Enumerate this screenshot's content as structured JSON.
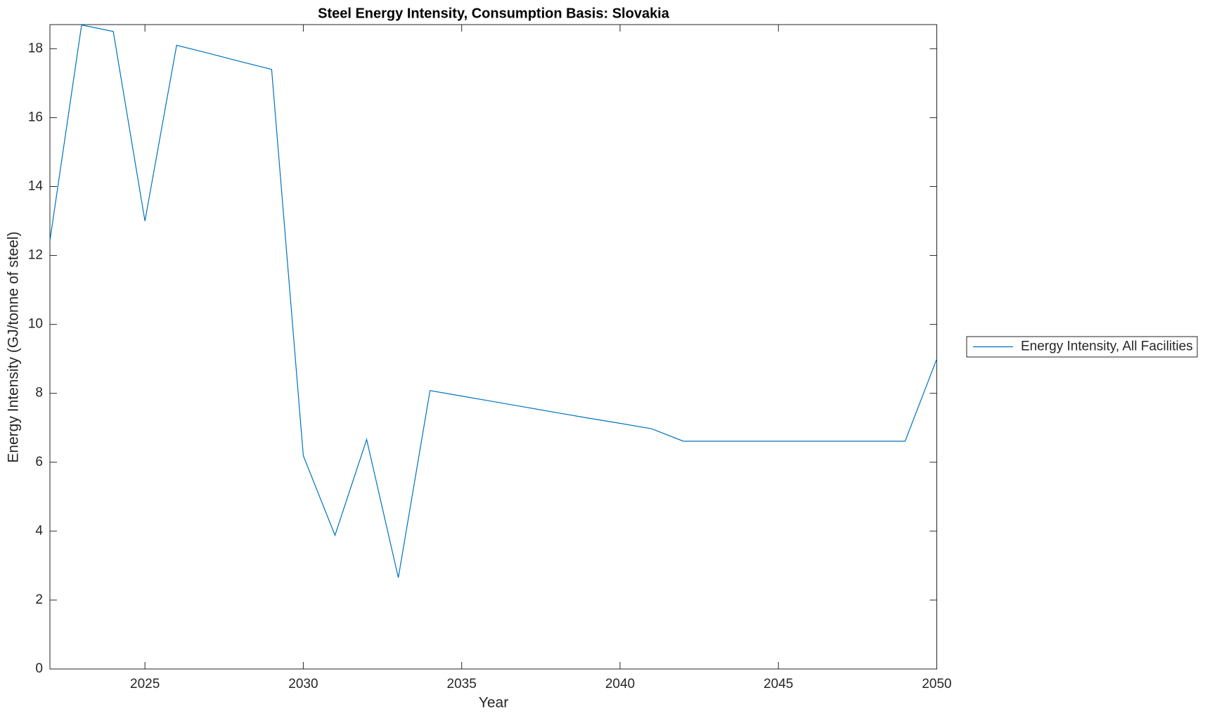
{
  "chart_data": {
    "type": "line",
    "title": "Steel Energy Intensity, Consumption Basis: Slovakia",
    "x_label": "Year",
    "y_label": "Energy Intensity (GJ/tonne of steel)",
    "x": [
      2022,
      2023,
      2024,
      2025,
      2026,
      2027,
      2028,
      2029,
      2030,
      2031,
      2032,
      2033,
      2034,
      2035,
      2036,
      2037,
      2038,
      2039,
      2040,
      2041,
      2042,
      2043,
      2044,
      2045,
      2046,
      2047,
      2048,
      2049,
      2050
    ],
    "series": [
      {
        "name": "Energy Intensity, All Facilities",
        "color": "#0072bd",
        "values": [
          12.43,
          18.69,
          18.5,
          13.0,
          18.1,
          17.87,
          17.63,
          17.4,
          6.19,
          3.88,
          6.66,
          2.65,
          8.08,
          7.92,
          7.76,
          7.6,
          7.44,
          7.28,
          7.13,
          6.97,
          6.61,
          6.61,
          6.61,
          6.61,
          6.61,
          6.61,
          6.61,
          6.61,
          9.0
        ]
      }
    ],
    "xlim": [
      2022,
      2050
    ],
    "xticks": [
      2025,
      2030,
      2035,
      2040,
      2045,
      2050
    ],
    "ylim": [
      0,
      18.7
    ],
    "yticks": [
      0,
      2,
      4,
      6,
      8,
      10,
      12,
      14,
      16,
      18
    ],
    "legend": "outside-right"
  }
}
